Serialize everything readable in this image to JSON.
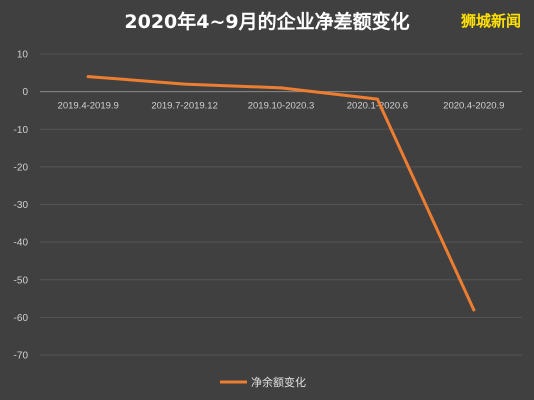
{
  "chart_data": {
    "type": "line",
    "title": "2020年4~9月的企业净差额变化",
    "watermark": "狮城新闻",
    "categories": [
      "2019.4-2019.9",
      "2019.7-2019.12",
      "2019.10-2020.3",
      "2020.1-2020.6",
      "2020.4-2020.9"
    ],
    "series": [
      {
        "name": "净余额变化",
        "values": [
          4,
          2,
          1,
          -2,
          -58
        ],
        "color": "#ed7d31"
      }
    ],
    "y_ticks": [
      "10",
      "0",
      "-10",
      "-20",
      "-30",
      "-40",
      "-50",
      "-60",
      "-70"
    ],
    "ylim": [
      -70,
      10
    ],
    "grid": true,
    "legend_position": "bottom",
    "background": "#404040"
  }
}
